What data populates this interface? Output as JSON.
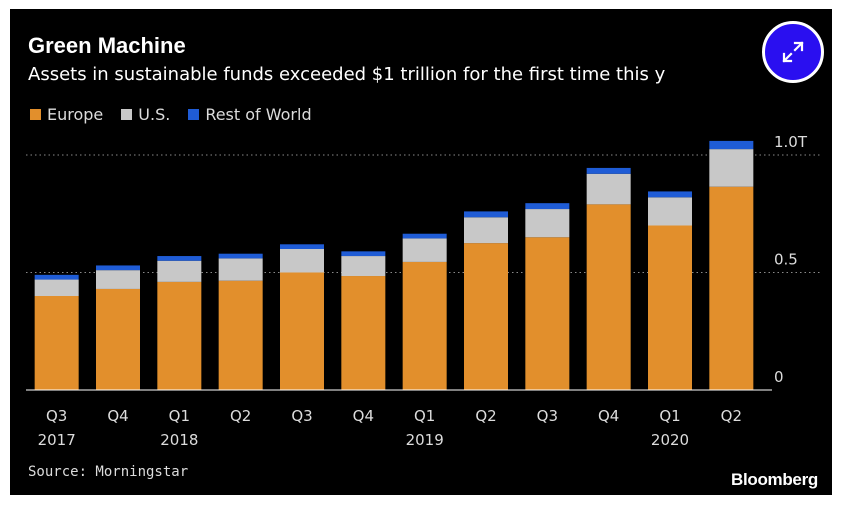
{
  "title": "Green Machine",
  "subtitle": "Assets in sustainable funds exceeded $1 trillion for the first time this y",
  "source": "Source: Morningstar",
  "brand": "Bloomberg",
  "expand_icon": "expand-arrows-icon",
  "colors": {
    "europe": "#e28f2c",
    "us": "#c8c8c8",
    "rest": "#1f5cd6",
    "background": "#000000",
    "expand_button": "#2a0ff0"
  },
  "chart_data": {
    "type": "bar",
    "stacked": true,
    "categories": [
      "Q3 2017",
      "Q4",
      "Q1 2018",
      "Q2",
      "Q3",
      "Q4",
      "Q1 2019",
      "Q2",
      "Q3",
      "Q4",
      "Q1 2020",
      "Q2"
    ],
    "tick_labels": [
      {
        "line1": "Q3",
        "line2": "2017"
      },
      {
        "line1": "Q4",
        "line2": ""
      },
      {
        "line1": "Q1",
        "line2": "2018"
      },
      {
        "line1": "Q2",
        "line2": ""
      },
      {
        "line1": "Q3",
        "line2": ""
      },
      {
        "line1": "Q4",
        "line2": ""
      },
      {
        "line1": "Q1",
        "line2": "2019"
      },
      {
        "line1": "Q2",
        "line2": ""
      },
      {
        "line1": "Q3",
        "line2": ""
      },
      {
        "line1": "Q4",
        "line2": ""
      },
      {
        "line1": "Q1",
        "line2": "2020"
      },
      {
        "line1": "Q2",
        "line2": ""
      }
    ],
    "series": [
      {
        "name": "Europe",
        "color": "#e28f2c",
        "values": [
          0.4,
          0.43,
          0.46,
          0.465,
          0.5,
          0.485,
          0.545,
          0.625,
          0.65,
          0.79,
          0.7,
          0.865
        ]
      },
      {
        "name": "U.S.",
        "color": "#c8c8c8",
        "values": [
          0.07,
          0.08,
          0.09,
          0.095,
          0.1,
          0.085,
          0.1,
          0.11,
          0.12,
          0.13,
          0.12,
          0.16
        ]
      },
      {
        "name": "Rest of World",
        "color": "#1f5cd6",
        "values": [
          0.02,
          0.02,
          0.02,
          0.02,
          0.02,
          0.02,
          0.02,
          0.025,
          0.025,
          0.025,
          0.025,
          0.035
        ]
      }
    ],
    "y_ticks": [
      {
        "value": 0,
        "label": "0"
      },
      {
        "value": 0.5,
        "label": "0.5"
      },
      {
        "value": 1.0,
        "label": "1.0T"
      }
    ],
    "ylim": [
      0,
      1.0
    ],
    "grid": true,
    "legend_position": "top-left"
  }
}
